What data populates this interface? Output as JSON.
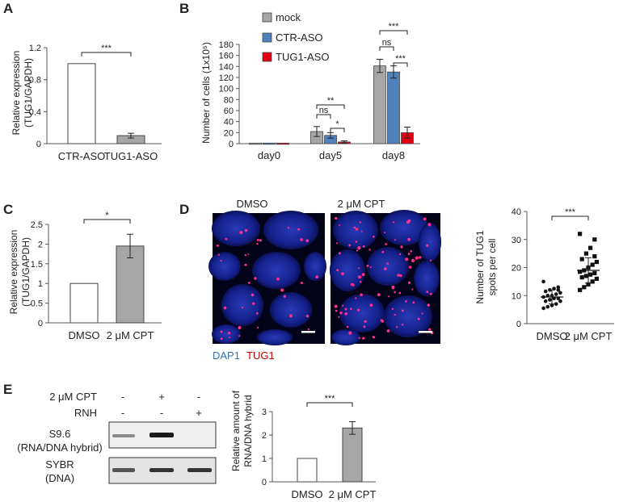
{
  "panels": {
    "A": {
      "letter": "A",
      "chart_data": {
        "type": "bar",
        "categories": [
          "CTR-ASO",
          "TUG1-ASO"
        ],
        "values": [
          1.0,
          0.1
        ],
        "errors": [
          0,
          0.03
        ],
        "ylabel_line1": "Relative expression",
        "ylabel_line2": "(TUG1/GAPDH)",
        "ylim": [
          0,
          1.2
        ],
        "yticks": [
          "0",
          "0.4",
          "0.8",
          "1.2"
        ],
        "significance": "***",
        "colors": [
          "#ffffff",
          "#a6a6a6"
        ]
      }
    },
    "B": {
      "letter": "B",
      "chart_data": {
        "type": "bar",
        "categories": [
          "day0",
          "day5",
          "day8"
        ],
        "series": [
          {
            "name": "mock",
            "color": "#a6a6a6",
            "values": [
              1,
              22,
              141
            ],
            "errors": [
              0,
              9,
              12
            ]
          },
          {
            "name": "CTR-ASO",
            "color": "#4f81bd",
            "values": [
              1,
              15,
              130
            ],
            "errors": [
              0,
              5,
              11
            ]
          },
          {
            "name": "TUG1-ASO",
            "color": "#e0000f",
            "values": [
              1,
              3,
              20
            ],
            "errors": [
              0,
              2,
              10
            ]
          }
        ],
        "ylabel": "Number of cells (1x10⁵)",
        "ylim": [
          0,
          180
        ],
        "yticks": [
          "0",
          "20",
          "40",
          "60",
          "80",
          "100",
          "120",
          "140",
          "160",
          "180"
        ],
        "significance": {
          "day5_ns": "ns",
          "day5_outer": "**",
          "day5_inner": "*",
          "day8_outer": "***",
          "day8_ns": "ns",
          "day8_inner": "***"
        }
      }
    },
    "C": {
      "letter": "C",
      "chart_data": {
        "type": "bar",
        "categories": [
          "DMSO",
          "2 μM CPT"
        ],
        "values": [
          1.0,
          1.95
        ],
        "errors": [
          0,
          0.3
        ],
        "ylabel_line1": "Relative expression",
        "ylabel_line2": "(TUG1/GAPDH)",
        "ylim": [
          0,
          2.5
        ],
        "yticks": [
          "0",
          "0.5",
          "1",
          "1.5",
          "2",
          "2.5"
        ],
        "significance": "*",
        "colors": [
          "#ffffff",
          "#a6a6a6"
        ]
      }
    },
    "D": {
      "letter": "D",
      "image_labels": {
        "left": "DMSO",
        "right": "2 μM  CPT"
      },
      "stain_labels": {
        "dapi": "DAP1",
        "tug1": "TUG1"
      },
      "chart_data": {
        "type": "scatter",
        "categories": [
          "DMSO",
          "2 μM CPT"
        ],
        "ylabel_line1": "Number of TUG1",
        "ylabel_line2": "spots per cell",
        "ylim": [
          0,
          40
        ],
        "yticks": [
          "0",
          "10",
          "20",
          "30",
          "40"
        ],
        "significance": "***",
        "series": [
          {
            "name": "DMSO",
            "mean": 9.5,
            "sd": 2.5,
            "points": [
              15,
              13,
              12.5,
              12,
              11.5,
              11,
              10.5,
              10,
              10,
              9.5,
              9,
              9,
              8.5,
              8,
              8,
              7,
              6.5,
              6,
              5.5,
              12
            ]
          },
          {
            "name": "2 μM CPT",
            "mean": 19,
            "sd": 4.5,
            "points": [
              32,
              30,
              27,
              25,
              23,
              22,
              21,
              20,
              19,
              18.5,
              18,
              17.5,
              17,
              16.5,
              16,
              15,
              14,
              13,
              12,
              24
            ]
          }
        ]
      }
    },
    "E": {
      "letter": "E",
      "gel": {
        "cpt_label": "2 μM CPT",
        "rnh_label": "RNH",
        "cpt_signs": [
          "-",
          "+",
          "-"
        ],
        "rnh_signs": [
          "-",
          "-",
          "+"
        ],
        "row1_line1": "S9.6",
        "row1_line2": "(RNA/DNA hybrid)",
        "row2_line1": "SYBR",
        "row2_line2": "(DNA)"
      },
      "chart_data": {
        "type": "bar",
        "categories": [
          "DMSO",
          "2 μM CPT"
        ],
        "values": [
          1.0,
          2.3
        ],
        "errors": [
          0,
          0.27
        ],
        "ylabel_line1": "Relative amount of",
        "ylabel_line2": "RNA/DNA hybrid",
        "ylim": [
          0,
          3
        ],
        "yticks": [
          "0",
          "1",
          "2",
          "3"
        ],
        "significance": "***",
        "colors": [
          "#ffffff",
          "#a6a6a6"
        ]
      }
    }
  }
}
